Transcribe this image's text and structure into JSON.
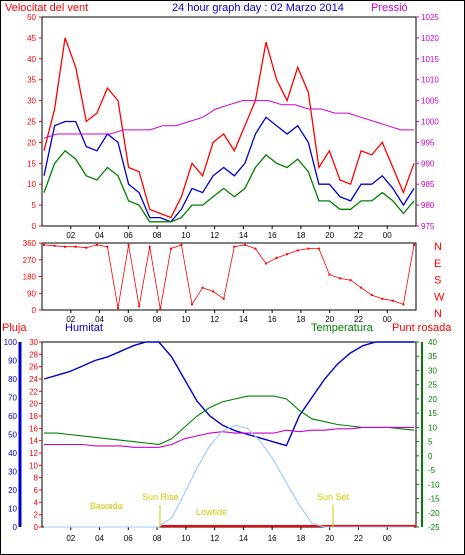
{
  "header": {
    "left_label": "Velocitat del vent",
    "title": "24 hour graph day : 02 Marzo 2014",
    "right_label": "Pressió"
  },
  "bottom_labels": {
    "pluja": "Pluja",
    "humitat": "Humitat",
    "temperatura": "Temperatura",
    "punt_rosada": "Punt rosada"
  },
  "sun_labels": {
    "baixada": "Baixada",
    "sun_rise": "Sun Rise",
    "lowtide": "Lowtide",
    "sun_set": "Sun Set"
  },
  "colors": {
    "red": "#ff0000",
    "green": "#008000",
    "blue": "#0000cc",
    "magenta": "#cc00cc",
    "lightblue": "#99ccff",
    "gold": "#cccc00"
  },
  "chart_data": [
    {
      "type": "line",
      "x_ticks": [
        "02",
        "04",
        "06",
        "08",
        "10",
        "12",
        "14",
        "16",
        "18",
        "20",
        "22",
        "00"
      ],
      "y_left_ticks": [
        "0",
        "5",
        "10",
        "15",
        "20",
        "25",
        "30",
        "35",
        "40",
        "45",
        "50"
      ],
      "y_right_ticks": [
        "975",
        "980",
        "985",
        "990",
        "995",
        "1000",
        "1005",
        "1010",
        "1015",
        "1020",
        "1025"
      ],
      "ylim_left": [
        0,
        50
      ],
      "ylim_right": [
        975,
        1025
      ],
      "series": [
        {
          "color": "red",
          "values": [
            18,
            28,
            45,
            38,
            25,
            27,
            33,
            30,
            14,
            13,
            4,
            3,
            2,
            7,
            15,
            12,
            20,
            22,
            18,
            24,
            30,
            44,
            35,
            30,
            38,
            32,
            14,
            18,
            11,
            10,
            18,
            17,
            20,
            14,
            8,
            15
          ]
        },
        {
          "color": "blue",
          "values": [
            12,
            24,
            25,
            25,
            19,
            18,
            22,
            20,
            10,
            8,
            2,
            2,
            1,
            4,
            9,
            8,
            12,
            14,
            12,
            15,
            22,
            26,
            24,
            22,
            24,
            20,
            10,
            10,
            7,
            6,
            10,
            10,
            12,
            9,
            5,
            9
          ]
        },
        {
          "color": "green",
          "values": [
            8,
            15,
            18,
            16,
            12,
            11,
            14,
            12,
            6,
            5,
            1,
            1,
            1,
            2,
            5,
            5,
            7,
            9,
            7,
            9,
            14,
            17,
            15,
            14,
            16,
            13,
            6,
            6,
            4,
            4,
            6,
            6,
            8,
            6,
            3,
            6
          ]
        },
        {
          "color": "magenta",
          "axis": "right",
          "values": [
            996,
            997,
            997,
            997,
            997,
            997,
            998,
            998,
            998,
            999,
            999,
            1000,
            1001,
            1003,
            1004,
            1005,
            1005,
            1005,
            1004,
            1004,
            1003,
            1003,
            1002,
            1002,
            1001,
            1000,
            999,
            998,
            998
          ]
        }
      ]
    },
    {
      "type": "scatter",
      "x_ticks": [
        "02",
        "04",
        "06",
        "08",
        "10",
        "12",
        "14",
        "16",
        "18",
        "20",
        "22",
        "00"
      ],
      "y_left_ticks": [
        "0",
        "90",
        "180",
        "270",
        "360"
      ],
      "y_right_ticks": [
        "N",
        "W",
        "S",
        "E",
        "N"
      ],
      "ylim": [
        0,
        360
      ],
      "series": [
        {
          "color": "red",
          "values": [
            350,
            345,
            340,
            340,
            335,
            350,
            340,
            10,
            350,
            20,
            340,
            5,
            330,
            350,
            30,
            120,
            100,
            60,
            340,
            350,
            330,
            250,
            280,
            300,
            320,
            330,
            330,
            190,
            170,
            160,
            120,
            80,
            60,
            50,
            30,
            350
          ]
        }
      ]
    },
    {
      "type": "line",
      "x_ticks": [
        "02",
        "04",
        "06",
        "08",
        "10",
        "12",
        "14",
        "16",
        "18",
        "20",
        "22",
        "00"
      ],
      "y_rain_ticks": [
        "0",
        "2",
        "4",
        "6",
        "8",
        "10",
        "12",
        "14",
        "16",
        "18",
        "20",
        "22",
        "24",
        "26",
        "28",
        "30"
      ],
      "y_hum_ticks": [
        "0",
        "10",
        "20",
        "30",
        "40",
        "50",
        "60",
        "70",
        "80",
        "90",
        "100"
      ],
      "y_temp_ticks": [
        "-25",
        "-20",
        "-15",
        "-10",
        "-5",
        "0",
        "5",
        "10",
        "15",
        "20",
        "25",
        "30",
        "35",
        "40"
      ],
      "ylim_humidity": [
        0,
        100
      ],
      "ylim_temperature": [
        -25,
        40
      ],
      "series": [
        {
          "color": "blue",
          "values": [
            80,
            82,
            84,
            87,
            90,
            92,
            95,
            98,
            100,
            100,
            92,
            80,
            68,
            60,
            55,
            52,
            50,
            48,
            46,
            44,
            60,
            70,
            80,
            88,
            94,
            98,
            100,
            100,
            100,
            100
          ]
        },
        {
          "color": "green",
          "values": [
            8,
            8,
            7.5,
            7,
            6.5,
            6,
            5.5,
            5,
            4.5,
            4,
            6,
            10,
            14,
            17,
            19,
            20,
            21,
            21,
            21,
            20,
            16,
            13,
            12,
            11,
            10.5,
            10,
            10,
            10,
            9.5,
            9
          ]
        },
        {
          "color": "magenta",
          "values": [
            4,
            4,
            4,
            4,
            3.5,
            3.5,
            3.5,
            3,
            3,
            3,
            4,
            6,
            7,
            8,
            8.5,
            8,
            8,
            8,
            8,
            9,
            8.5,
            9,
            9,
            9.5,
            9.5,
            10,
            10,
            10,
            10,
            10
          ]
        },
        {
          "color": "lightblue",
          "values": [
            0,
            0,
            0,
            0,
            0,
            0,
            0,
            0,
            0,
            0,
            5,
            18,
            32,
            44,
            52,
            55,
            53,
            46,
            36,
            24,
            12,
            2,
            0,
            0,
            0,
            0,
            0,
            0,
            0,
            0
          ]
        }
      ]
    }
  ]
}
